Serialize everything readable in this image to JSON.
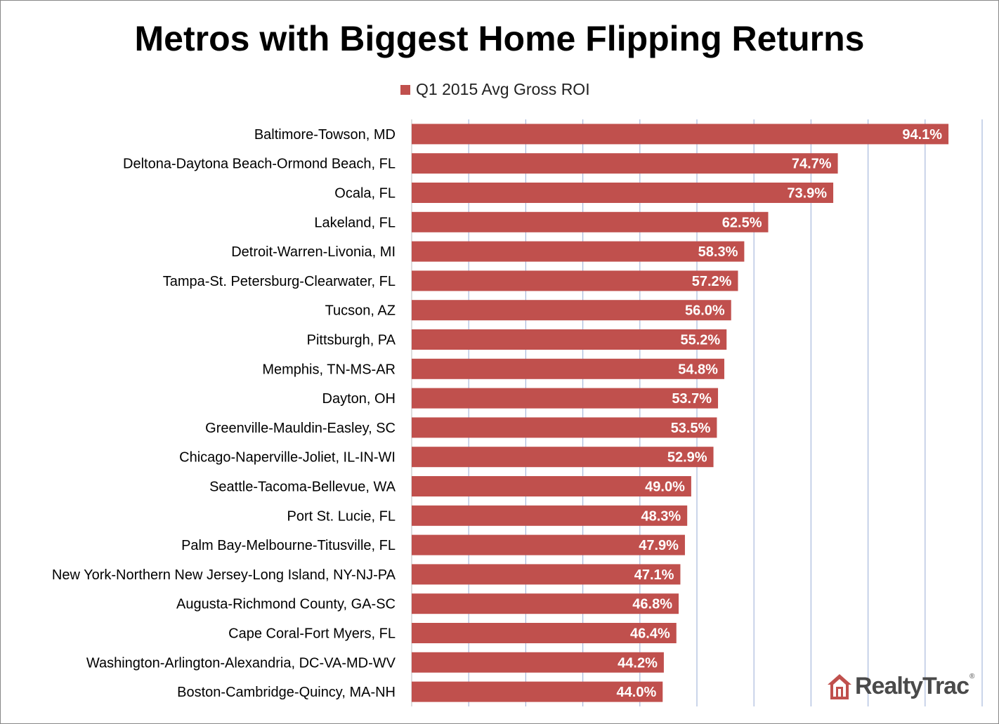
{
  "chart_data": {
    "type": "bar",
    "orientation": "horizontal",
    "title": "Metros with Biggest Home Flipping Returns",
    "legend_position": "top",
    "grid": true,
    "xlim": [
      0,
      100
    ],
    "categories": [
      "Baltimore-Towson, MD",
      "Deltona-Daytona Beach-Ormond Beach, FL",
      "Ocala, FL",
      "Lakeland, FL",
      "Detroit-Warren-Livonia, MI",
      "Tampa-St. Petersburg-Clearwater, FL",
      "Tucson, AZ",
      "Pittsburgh, PA",
      "Memphis, TN-MS-AR",
      "Dayton, OH",
      "Greenville-Mauldin-Easley, SC",
      "Chicago-Naperville-Joliet, IL-IN-WI",
      "Seattle-Tacoma-Bellevue, WA",
      "Port St. Lucie, FL",
      "Palm Bay-Melbourne-Titusville, FL",
      "New York-Northern New Jersey-Long Island, NY-NJ-PA",
      "Augusta-Richmond County, GA-SC",
      "Cape Coral-Fort Myers, FL",
      "Washington-Arlington-Alexandria, DC-VA-MD-WV",
      "Boston-Cambridge-Quincy, MA-NH"
    ],
    "series": [
      {
        "name": "Q1 2015 Avg Gross ROI",
        "color": "#c0504d",
        "values": [
          94.1,
          74.7,
          73.9,
          62.5,
          58.3,
          57.2,
          56.0,
          55.2,
          54.8,
          53.7,
          53.5,
          52.9,
          49.0,
          48.3,
          47.9,
          47.1,
          46.8,
          46.4,
          44.2,
          44.0
        ],
        "value_labels": [
          "94.1%",
          "74.7%",
          "73.9%",
          "62.5%",
          "58.3%",
          "57.2%",
          "56.0%",
          "55.2%",
          "54.8%",
          "53.7%",
          "53.5%",
          "52.9%",
          "49.0%",
          "48.3%",
          "47.9%",
          "47.1%",
          "46.8%",
          "46.4%",
          "44.2%",
          "44.0%"
        ]
      }
    ],
    "gridline_color": "#a8b9dc"
  },
  "logo": {
    "text": "RealtyTrac",
    "icon": "house-logo-icon",
    "tm": "®",
    "color": "#c0504d"
  }
}
